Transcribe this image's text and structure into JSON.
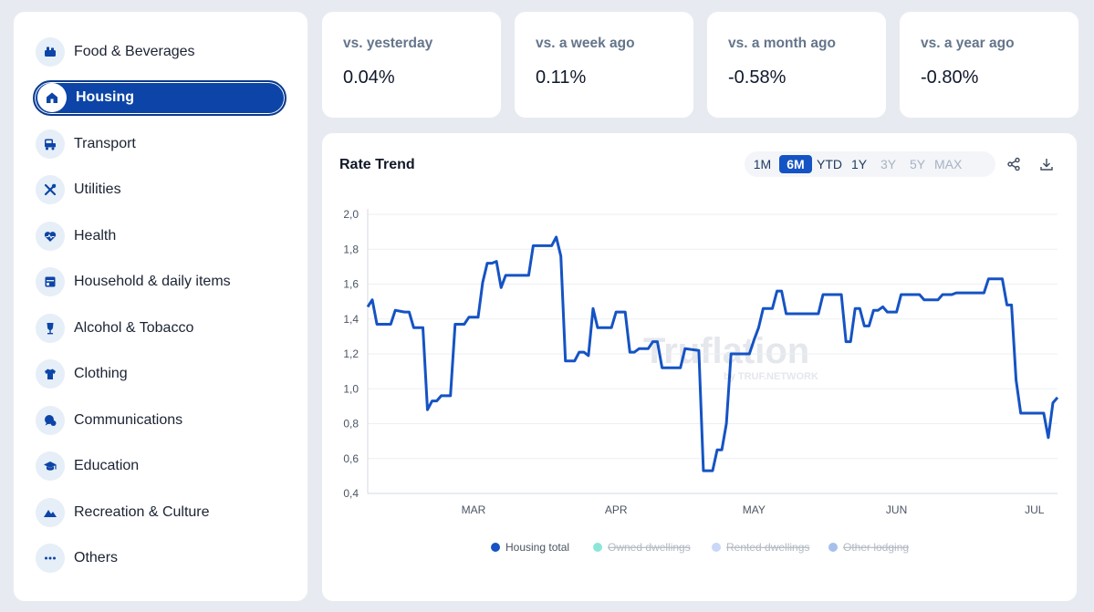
{
  "sidebar": {
    "items": [
      {
        "label": "Food & Beverages",
        "icon": "food-icon",
        "active": false
      },
      {
        "label": "Housing",
        "icon": "house-icon",
        "active": true
      },
      {
        "label": "Transport",
        "icon": "transport-icon",
        "active": false
      },
      {
        "label": "Utilities",
        "icon": "tools-icon",
        "active": false
      },
      {
        "label": "Health",
        "icon": "heart-icon",
        "active": false
      },
      {
        "label": "Household & daily items",
        "icon": "household-icon",
        "active": false
      },
      {
        "label": "Alcohol & Tobacco",
        "icon": "wine-glass-icon",
        "active": false
      },
      {
        "label": "Clothing",
        "icon": "shirt-icon",
        "active": false
      },
      {
        "label": "Communications",
        "icon": "chat-icon",
        "active": false
      },
      {
        "label": "Education",
        "icon": "graduation-cap-icon",
        "active": false
      },
      {
        "label": "Recreation & Culture",
        "icon": "mountain-icon",
        "active": false
      },
      {
        "label": "Others",
        "icon": "dots-icon",
        "active": false
      }
    ]
  },
  "stats": [
    {
      "title": "vs. yesterday",
      "value": "0.04%"
    },
    {
      "title": "vs. a week ago",
      "value": "0.11%"
    },
    {
      "title": "vs. a month ago",
      "value": "-0.58%"
    },
    {
      "title": "vs. a year ago",
      "value": "-0.80%"
    }
  ],
  "chart_panel": {
    "title": "Rate Trend",
    "ranges": [
      {
        "label": "1M",
        "state": "normal"
      },
      {
        "label": "6M",
        "state": "active"
      },
      {
        "label": "YTD",
        "state": "normal"
      },
      {
        "label": "1Y",
        "state": "normal"
      },
      {
        "label": "3Y",
        "state": "dim"
      },
      {
        "label": "5Y",
        "state": "dim"
      },
      {
        "label": "MAX",
        "state": "dim"
      }
    ],
    "share_icon": "share-icon",
    "download_icon": "download-icon",
    "watermark": {
      "brand": "Truflation",
      "sub": "by TRUF.NETWORK"
    }
  },
  "colors": {
    "accent": "#1553c4",
    "line": "#1553c4",
    "active_nav": "#0c45a7"
  },
  "chart_data": {
    "type": "line",
    "ylim": [
      0.4,
      2.0
    ],
    "y_ticks": [
      "0,4",
      "0,6",
      "0,8",
      "1,0",
      "1,2",
      "1,4",
      "1,6",
      "1,8",
      "2,0"
    ],
    "x_ticks": [
      {
        "label": "MAR",
        "day": 23
      },
      {
        "label": "APR",
        "day": 54
      },
      {
        "label": "MAY",
        "day": 84
      },
      {
        "label": "JUN",
        "day": 115
      },
      {
        "label": "JUL",
        "day": 145
      }
    ],
    "x_range": [
      0,
      150
    ],
    "legend": [
      {
        "name": "Housing total",
        "color": "#1553c4",
        "enabled": true
      },
      {
        "name": "Owned dwellings",
        "color": "#7fe3d4",
        "enabled": false
      },
      {
        "name": "Rented dwellings",
        "color": "#c4d3f5",
        "enabled": false
      },
      {
        "name": "Other lodging",
        "color": "#9db8ea",
        "enabled": false
      }
    ],
    "series": [
      {
        "name": "Housing total",
        "points": [
          [
            0,
            1.47
          ],
          [
            1,
            1.51
          ],
          [
            2,
            1.37
          ],
          [
            4,
            1.37
          ],
          [
            5,
            1.37
          ],
          [
            6,
            1.45
          ],
          [
            8,
            1.44
          ],
          [
            9,
            1.44
          ],
          [
            10,
            1.35
          ],
          [
            11,
            1.35
          ],
          [
            12,
            1.35
          ],
          [
            13,
            0.88
          ],
          [
            14,
            0.93
          ],
          [
            15,
            0.93
          ],
          [
            16,
            0.96
          ],
          [
            18,
            0.96
          ],
          [
            19,
            1.37
          ],
          [
            21,
            1.37
          ],
          [
            22,
            1.41
          ],
          [
            24,
            1.41
          ],
          [
            25,
            1.61
          ],
          [
            26,
            1.72
          ],
          [
            27,
            1.72
          ],
          [
            28,
            1.73
          ],
          [
            29,
            1.58
          ],
          [
            30,
            1.65
          ],
          [
            35,
            1.65
          ],
          [
            36,
            1.82
          ],
          [
            40,
            1.82
          ],
          [
            41,
            1.87
          ],
          [
            42,
            1.76
          ],
          [
            43,
            1.16
          ],
          [
            45,
            1.16
          ],
          [
            46,
            1.21
          ],
          [
            47,
            1.21
          ],
          [
            48,
            1.19
          ],
          [
            49,
            1.46
          ],
          [
            50,
            1.35
          ],
          [
            53,
            1.35
          ],
          [
            54,
            1.44
          ],
          [
            56,
            1.44
          ],
          [
            57,
            1.21
          ],
          [
            58,
            1.21
          ],
          [
            59,
            1.23
          ],
          [
            61,
            1.23
          ],
          [
            62,
            1.27
          ],
          [
            63,
            1.27
          ],
          [
            64,
            1.12
          ],
          [
            68,
            1.12
          ],
          [
            69,
            1.23
          ],
          [
            72,
            1.22
          ],
          [
            73,
            0.53
          ],
          [
            75,
            0.53
          ],
          [
            76,
            0.65
          ],
          [
            77,
            0.65
          ],
          [
            78,
            0.8
          ],
          [
            79,
            1.2
          ],
          [
            83,
            1.2
          ],
          [
            84,
            1.28
          ],
          [
            85,
            1.35
          ],
          [
            86,
            1.46
          ],
          [
            87,
            1.46
          ],
          [
            88,
            1.46
          ],
          [
            89,
            1.56
          ],
          [
            90,
            1.56
          ],
          [
            91,
            1.43
          ],
          [
            98,
            1.43
          ],
          [
            99,
            1.54
          ],
          [
            103,
            1.54
          ],
          [
            104,
            1.27
          ],
          [
            105,
            1.27
          ],
          [
            106,
            1.46
          ],
          [
            107,
            1.46
          ],
          [
            108,
            1.36
          ],
          [
            109,
            1.36
          ],
          [
            110,
            1.45
          ],
          [
            111,
            1.45
          ],
          [
            112,
            1.47
          ],
          [
            113,
            1.44
          ],
          [
            115,
            1.44
          ],
          [
            116,
            1.54
          ],
          [
            120,
            1.54
          ],
          [
            121,
            1.51
          ],
          [
            124,
            1.51
          ],
          [
            125,
            1.54
          ],
          [
            127,
            1.54
          ],
          [
            128,
            1.55
          ],
          [
            134,
            1.55
          ],
          [
            135,
            1.63
          ],
          [
            138,
            1.63
          ],
          [
            139,
            1.48
          ],
          [
            140,
            1.48
          ],
          [
            141,
            1.05
          ],
          [
            142,
            0.86
          ],
          [
            147,
            0.86
          ],
          [
            148,
            0.72
          ],
          [
            149,
            0.92
          ],
          [
            150,
            0.95
          ]
        ]
      }
    ]
  }
}
